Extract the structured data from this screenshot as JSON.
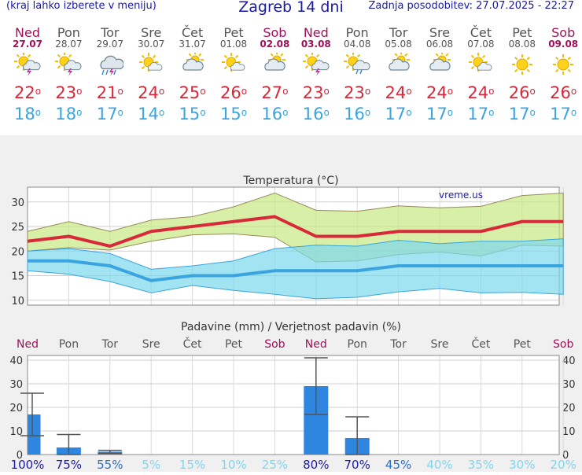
{
  "header": {
    "menu_hint": "(kraj lahko izberete v meniju)",
    "title": "Zagreb 14 dni",
    "updated": "Zadnja posodobitev: 27.07.2025 - 22:27"
  },
  "colors": {
    "weekend": "#a0105a",
    "weekday": "#555555",
    "max": "#d8283a",
    "min": "#3aa4e0",
    "bar": "#2f86e0"
  },
  "days": [
    {
      "name": "Ned",
      "date": "27.07",
      "weekend": true,
      "icon": "sun-cloud-storm-icon",
      "max": "22",
      "min": "18"
    },
    {
      "name": "Pon",
      "date": "28.07",
      "weekend": false,
      "icon": "sun-cloud-storm-icon",
      "max": "23",
      "min": "18"
    },
    {
      "name": "Tor",
      "date": "29.07",
      "weekend": false,
      "icon": "cloud-rain-storm-icon",
      "max": "21",
      "min": "17"
    },
    {
      "name": "Sre",
      "date": "30.07",
      "weekend": false,
      "icon": "sun-small-cloud-icon",
      "max": "24",
      "min": "14"
    },
    {
      "name": "Čet",
      "date": "31.07",
      "weekend": false,
      "icon": "sun-cloud-icon",
      "max": "25",
      "min": "15"
    },
    {
      "name": "Pet",
      "date": "01.08",
      "weekend": false,
      "icon": "sun-small-cloud-icon",
      "max": "26",
      "min": "15"
    },
    {
      "name": "Sob",
      "date": "02.08",
      "weekend": true,
      "icon": "sun-cloud-icon",
      "max": "27",
      "min": "16"
    },
    {
      "name": "Ned",
      "date": "03.08",
      "weekend": true,
      "icon": "sun-cloud-storm-icon",
      "max": "23",
      "min": "16"
    },
    {
      "name": "Pon",
      "date": "04.08",
      "weekend": false,
      "icon": "sun-cloud-rain-icon",
      "max": "23",
      "min": "16"
    },
    {
      "name": "Tor",
      "date": "05.08",
      "weekend": false,
      "icon": "sun-cloud-icon",
      "max": "24",
      "min": "17"
    },
    {
      "name": "Sre",
      "date": "06.08",
      "weekend": false,
      "icon": "sun-cloud-icon",
      "max": "24",
      "min": "17"
    },
    {
      "name": "Čet",
      "date": "07.08",
      "weekend": false,
      "icon": "sun-small-cloud-icon",
      "max": "24",
      "min": "17"
    },
    {
      "name": "Pet",
      "date": "08.08",
      "weekend": false,
      "icon": "sun-icon",
      "max": "26",
      "min": "17"
    },
    {
      "name": "Sob",
      "date": "09.08",
      "weekend": true,
      "icon": "sun-icon",
      "max": "26",
      "min": "17"
    }
  ],
  "chart_data": [
    {
      "type": "line",
      "title": "Temperatura (°C)",
      "watermark": "vreme.us",
      "x": [
        "27.07",
        "28.07",
        "29.07",
        "30.07",
        "31.07",
        "01.08",
        "02.08",
        "03.08",
        "04.08",
        "05.08",
        "06.08",
        "07.08",
        "08.08",
        "09.08"
      ],
      "ylim": [
        9,
        33
      ],
      "yticks": [
        10,
        15,
        20,
        25,
        30
      ],
      "grid": true,
      "series": [
        {
          "values": [
            22,
            23,
            21,
            24,
            25,
            26,
            27,
            23,
            23,
            24,
            24,
            24,
            26,
            26
          ],
          "color": "#d8283a"
        },
        {
          "values": [
            18,
            18,
            17,
            14,
            15,
            15,
            16,
            16,
            16,
            17,
            17,
            17,
            17,
            17
          ],
          "color": "#3aa4e0"
        }
      ],
      "max_band_upper": [
        24,
        26,
        24,
        26.3,
        27,
        29,
        31.8,
        28.3,
        28.1,
        29.2,
        28.8,
        29.1,
        31.3,
        31.8
      ],
      "max_band_lower": [
        20,
        20.7,
        20.2,
        22,
        23.3,
        23.5,
        22.8,
        17.8,
        18,
        19.3,
        19.8,
        19,
        21.2,
        21
      ],
      "min_band_upper": [
        20,
        20.5,
        19.5,
        16.3,
        17,
        18,
        20.5,
        21.2,
        21,
        22.2,
        21.5,
        22,
        22,
        22.5
      ],
      "min_band_lower": [
        16,
        15.3,
        13.8,
        11.5,
        13,
        12,
        11.2,
        10.3,
        10.6,
        11.7,
        12.4,
        11.5,
        11.6,
        11.2
      ]
    },
    {
      "type": "bar",
      "title": "Padavine (mm) / Verjetnost padavin (%)",
      "categories": [
        "Ned",
        "Pon",
        "Tor",
        "Sre",
        "Čet",
        "Pet",
        "Sob",
        "Ned",
        "Pon",
        "Tor",
        "Sre",
        "Čet",
        "Pet",
        "Sob"
      ],
      "values": [
        17,
        3,
        1.2,
        0,
        0,
        0,
        0,
        29,
        7,
        0,
        0,
        0,
        0,
        0
      ],
      "error_high": [
        26,
        8.5,
        1.8,
        null,
        null,
        null,
        null,
        41,
        16,
        null,
        null,
        null,
        null,
        null
      ],
      "error_low": [
        8,
        0,
        0.5,
        null,
        null,
        null,
        null,
        17,
        0,
        null,
        null,
        null,
        null,
        null
      ],
      "probability": [
        "100%",
        "75%",
        "55%",
        "5%",
        "15%",
        "10%",
        "25%",
        "80%",
        "70%",
        "45%",
        "40%",
        "35%",
        "30%",
        "20%"
      ],
      "ylim": [
        0,
        42
      ],
      "yticks": [
        0,
        10,
        20,
        30,
        40
      ],
      "grid": true
    }
  ]
}
